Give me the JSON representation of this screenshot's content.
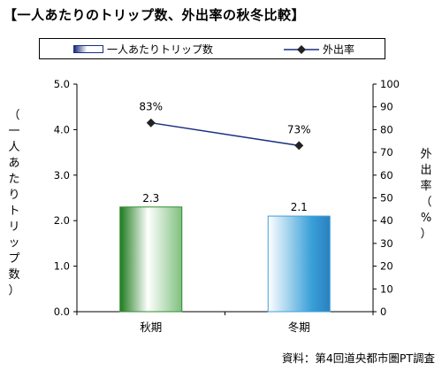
{
  "title": "【一人あたりのトリップ数、外出率の秋冬比較】",
  "source": "資料：第4回道央都市圏PT調査",
  "colors": {
    "bar_autumn": "#2e8b2e",
    "bar_winter": "#3aa0d8",
    "line": "#1a2f80",
    "marker": "#222222"
  },
  "chart_data": {
    "type": "bar+line",
    "categories": [
      "秋期",
      "冬期"
    ],
    "series": [
      {
        "name": "一人あたりトリップ数",
        "type": "bar",
        "axis": "left",
        "values": [
          2.3,
          2.1
        ],
        "labels": [
          "2.3",
          "2.1"
        ]
      },
      {
        "name": "外出率",
        "type": "line",
        "axis": "right",
        "values": [
          83,
          73
        ],
        "labels": [
          "83%",
          "73%"
        ]
      }
    ],
    "ylabel_left": "（一人あたりトリップ数）",
    "ylabel_right": "外出率（%）",
    "ylim_left": [
      0,
      5
    ],
    "ylim_right": [
      0,
      100
    ],
    "yticks_left": [
      "0.0",
      "1.0",
      "2.0",
      "3.0",
      "4.0",
      "5.0"
    ],
    "yticks_right": [
      "0",
      "10",
      "20",
      "30",
      "40",
      "50",
      "60",
      "70",
      "80",
      "90",
      "100"
    ],
    "legend_placement": "top",
    "grid": false
  }
}
